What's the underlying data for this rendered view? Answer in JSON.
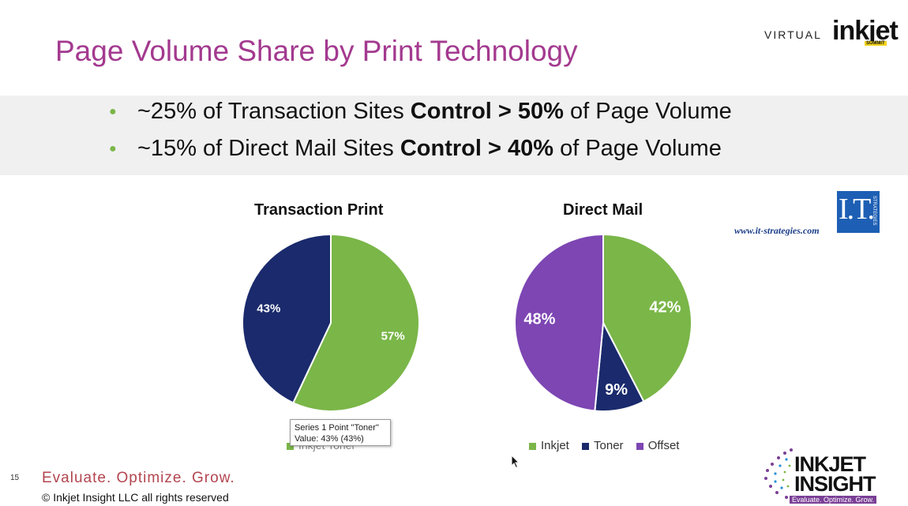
{
  "slide": {
    "title": "Page Volume Share by Print Technology",
    "number": "15"
  },
  "brand": {
    "virtual": "VIRTUAL",
    "inkjet": "inkjet",
    "summit": "SUMMIT"
  },
  "bullets": [
    {
      "pre": "~25% of Transaction Sites ",
      "bold": "Control > 50%",
      "post": " of Page Volume"
    },
    {
      "pre": "~15% of Direct Mail Sites ",
      "bold": "Control > 40%",
      "post": " of Page Volume"
    }
  ],
  "colors": {
    "title": "#a33a8f",
    "inkjet": "#7ab648",
    "toner": "#1a2a6c",
    "offset": "#7d46b3",
    "bullet": "#7ab648"
  },
  "chart_data": [
    {
      "type": "pie",
      "title": "Transaction Print",
      "categories": [
        "Inkjet",
        "Toner"
      ],
      "values": [
        57,
        43
      ],
      "labels": [
        "57%",
        "43%"
      ],
      "colors": [
        "#7ab648",
        "#1a2a6c"
      ]
    },
    {
      "type": "pie",
      "title": "Direct Mail",
      "categories": [
        "Inkjet",
        "Toner",
        "Offset"
      ],
      "values": [
        42,
        9,
        48
      ],
      "labels": [
        "42%",
        "9%",
        "48%"
      ],
      "colors": [
        "#7ab648",
        "#1a2a6c",
        "#7d46b3"
      ],
      "legend": "bottom"
    }
  ],
  "tooltip": {
    "line1": "Series 1 Point \"Toner\"",
    "line2": "Value: 43% (43%)"
  },
  "legend_partial": "Inkjet     Toner",
  "it_logo": {
    "text": "I.T.",
    "sub": "STRATEGIES",
    "url": "www.it-strategies.com"
  },
  "footer": {
    "tagline": "Evaluate. Optimize. Grow.",
    "copyright": "© Inkjet Insight LLC all rights reserved"
  },
  "insight_logo": {
    "line1": "INKJET",
    "line2": "INSIGHT",
    "tag": "Evaluate. Optimize. Grow."
  }
}
